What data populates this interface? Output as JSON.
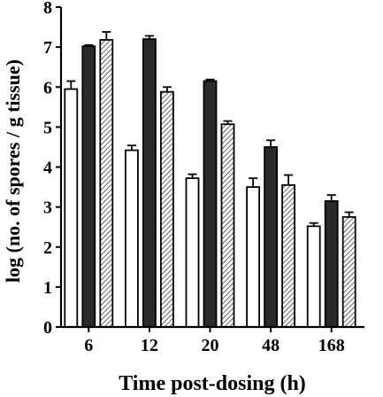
{
  "chart_data": {
    "type": "bar",
    "title": "",
    "xlabel": "Time post-dosing (h)",
    "ylabel": "log (no. of spores / g tissue)",
    "ylim": [
      0,
      8
    ],
    "yticks": [
      "0",
      "1",
      "2",
      "3",
      "4",
      "5",
      "6",
      "7",
      "8"
    ],
    "categories": [
      "6",
      "12",
      "20",
      "48",
      "168"
    ],
    "grid": false,
    "legend": "none",
    "series": [
      {
        "fill": "white",
        "color": "#ffffff",
        "values": [
          5.95,
          4.42,
          3.72,
          3.5,
          2.52
        ],
        "errors": [
          0.2,
          0.12,
          0.1,
          0.22,
          0.08
        ]
      },
      {
        "fill": "solid",
        "color": "#2a2a2a",
        "values": [
          7.02,
          7.2,
          6.15,
          4.5,
          3.15
        ],
        "errors": [
          0.03,
          0.08,
          0.04,
          0.17,
          0.15
        ]
      },
      {
        "fill": "hatched",
        "color": "#ffffff",
        "values": [
          7.18,
          5.88,
          5.07,
          3.55,
          2.75
        ],
        "errors": [
          0.2,
          0.12,
          0.08,
          0.25,
          0.12
        ]
      }
    ]
  }
}
